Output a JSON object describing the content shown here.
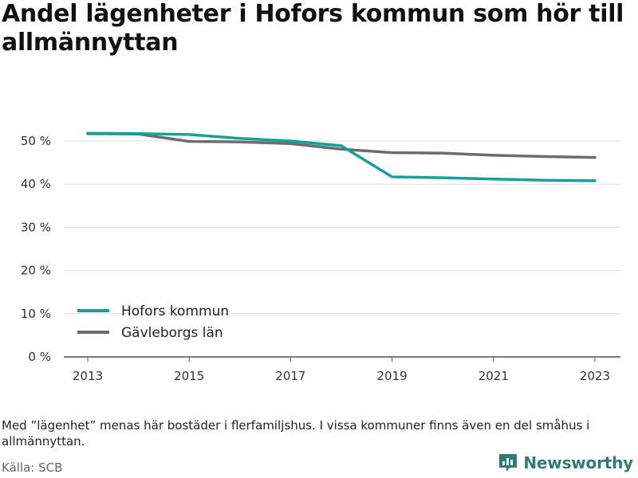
{
  "title": "Andel lägenheter i Hofors kommun som hör till allmännyttan",
  "note": "Med ”lägenhet” menas här bostäder i flerfamiljshus. I vissa kommuner finns även en del småhus i allmännyttan.",
  "source": "Källa: SCB",
  "brand": "Newsworthy",
  "colors": {
    "hofors": "#14a19a",
    "gavleborg": "#6b6b70",
    "grid": "#dddddd",
    "axis": "#555555"
  },
  "chart_data": {
    "type": "line",
    "x": [
      2013,
      2014,
      2015,
      2016,
      2017,
      2018,
      2019,
      2020,
      2021,
      2022,
      2023
    ],
    "series": [
      {
        "name": "Hofors kommun",
        "values": [
          51.8,
          51.7,
          51.5,
          50.6,
          50.0,
          48.9,
          41.7,
          41.5,
          41.2,
          40.9,
          40.8
        ]
      },
      {
        "name": "Gävleborgs län",
        "values": [
          51.7,
          51.6,
          49.9,
          49.8,
          49.4,
          48.1,
          47.3,
          47.2,
          46.7,
          46.4,
          46.2
        ]
      }
    ],
    "y_ticks": [
      "0 %",
      "10 %",
      "20 %",
      "30 %",
      "40 %",
      "50 %"
    ],
    "x_ticks": [
      "2013",
      "2015",
      "2017",
      "2019",
      "2021",
      "2023"
    ],
    "ylim": [
      0,
      55
    ],
    "legend": "bottom-left",
    "grid": true
  }
}
